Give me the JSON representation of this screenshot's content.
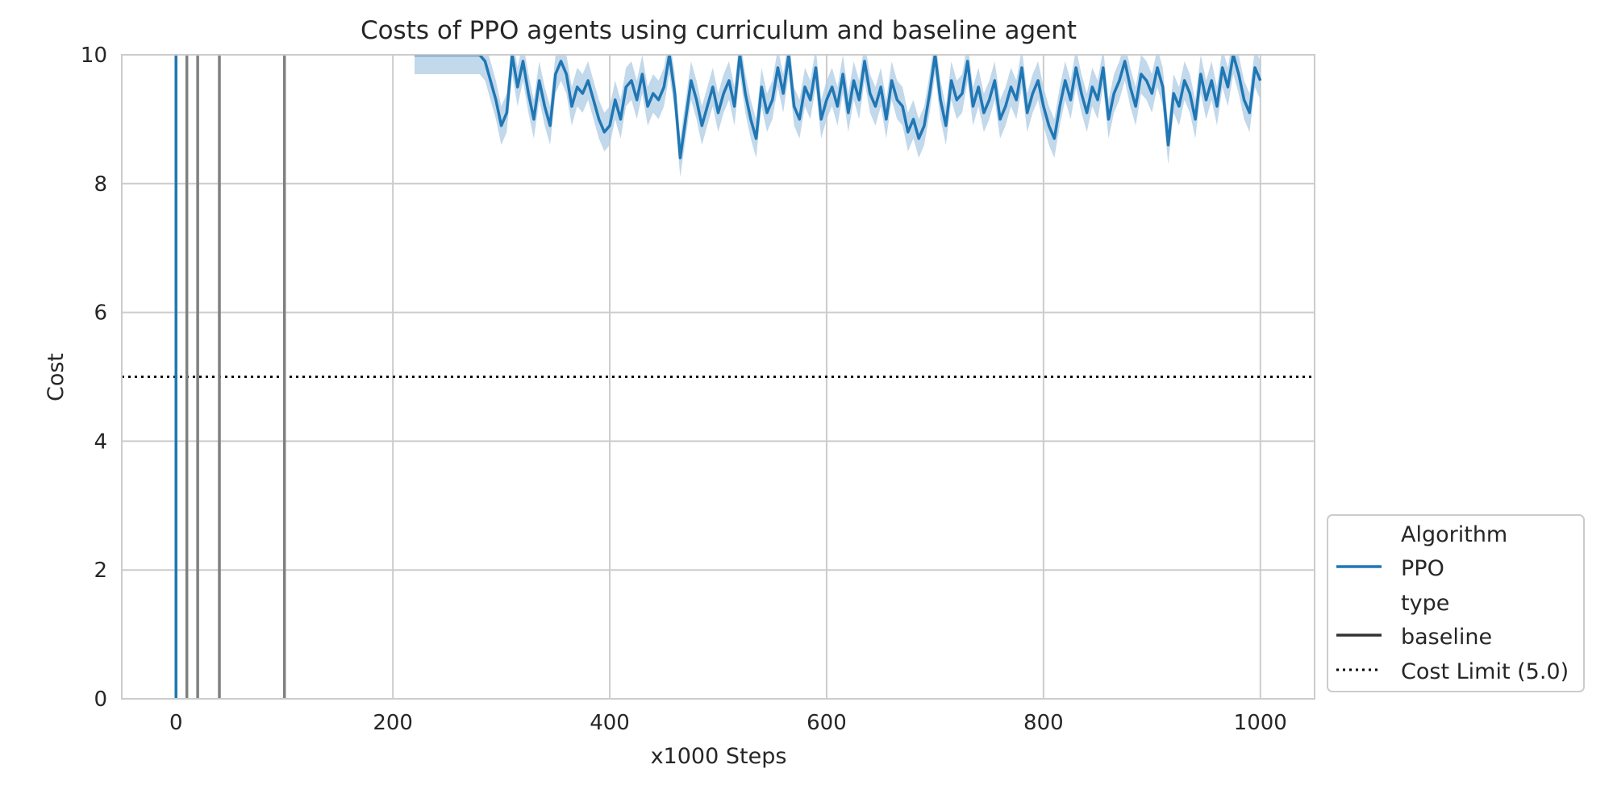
{
  "chart_data": {
    "type": "line",
    "title": "Costs of PPO agents using curriculum and baseline agent",
    "xlabel": "x1000 Steps",
    "ylabel": "Cost",
    "xlim": [
      -50,
      1050
    ],
    "ylim": [
      0,
      10
    ],
    "xticks": [
      0,
      200,
      400,
      600,
      800,
      1000
    ],
    "yticks": [
      0,
      2,
      4,
      6,
      8,
      10
    ],
    "xtick_labels": [
      "0",
      "200",
      "400",
      "600",
      "800",
      "1000"
    ],
    "ytick_labels": [
      "0",
      "2",
      "4",
      "6",
      "8",
      "10"
    ],
    "grid": true,
    "legend_position": "lower-right outside",
    "colors": {
      "ppo": "#1f77b4",
      "ppo_band": "#aecbe4",
      "curriculum_lines": "#808080",
      "cost_limit": "#000000",
      "grid": "#cccccc",
      "spine": "#cccccc"
    },
    "legend": {
      "algorithm_title": "Algorithm",
      "algorithm_entry": "PPO",
      "type_title": "type",
      "type_entry": "baseline",
      "cost_limit_entry": "Cost Limit (5.0)"
    },
    "cost_limit": 5.0,
    "vertical_lines": [
      {
        "x": 0,
        "color": "#1f77b4"
      },
      {
        "x": 10,
        "color": "#808080"
      },
      {
        "x": 20,
        "color": "#808080"
      },
      {
        "x": 40,
        "color": "#808080"
      },
      {
        "x": 100,
        "color": "#808080"
      }
    ],
    "series": [
      {
        "name": "PPO",
        "x": [
          220,
          225,
          230,
          235,
          240,
          250,
          260,
          270,
          280,
          285,
          290,
          295,
          300,
          305,
          310,
          315,
          320,
          325,
          330,
          335,
          340,
          345,
          350,
          355,
          360,
          365,
          370,
          375,
          380,
          385,
          390,
          395,
          400,
          405,
          410,
          415,
          420,
          425,
          430,
          435,
          440,
          445,
          450,
          455,
          460,
          465,
          470,
          475,
          480,
          485,
          490,
          495,
          500,
          505,
          510,
          515,
          520,
          525,
          530,
          535,
          540,
          545,
          550,
          555,
          560,
          565,
          570,
          575,
          580,
          585,
          590,
          595,
          600,
          605,
          610,
          615,
          620,
          625,
          630,
          635,
          640,
          645,
          650,
          655,
          660,
          665,
          670,
          675,
          680,
          685,
          690,
          695,
          700,
          705,
          710,
          715,
          720,
          725,
          730,
          735,
          740,
          745,
          750,
          755,
          760,
          765,
          770,
          775,
          780,
          785,
          790,
          795,
          800,
          805,
          810,
          815,
          820,
          825,
          830,
          835,
          840,
          845,
          850,
          855,
          860,
          865,
          870,
          875,
          880,
          885,
          890,
          895,
          900,
          905,
          910,
          915,
          920,
          925,
          930,
          935,
          940,
          945,
          950,
          955,
          960,
          965,
          970,
          975,
          980,
          985,
          990,
          995,
          1000
        ],
        "y": [
          10.0,
          10.0,
          10.0,
          10.0,
          10.0,
          10.0,
          10.0,
          10.0,
          10.0,
          9.9,
          9.6,
          9.3,
          8.9,
          9.1,
          10.0,
          9.5,
          9.9,
          9.4,
          9.0,
          9.6,
          9.2,
          8.9,
          9.7,
          9.9,
          9.7,
          9.2,
          9.5,
          9.4,
          9.6,
          9.3,
          9.0,
          8.8,
          8.9,
          9.3,
          9.0,
          9.5,
          9.6,
          9.3,
          9.7,
          9.2,
          9.4,
          9.3,
          9.5,
          10.0,
          9.4,
          8.4,
          9.0,
          9.6,
          9.3,
          8.9,
          9.2,
          9.5,
          9.1,
          9.4,
          9.6,
          9.2,
          10.0,
          9.4,
          9.0,
          8.7,
          9.5,
          9.1,
          9.3,
          9.8,
          9.4,
          10.0,
          9.2,
          9.0,
          9.5,
          9.3,
          9.8,
          9.0,
          9.3,
          9.5,
          9.2,
          9.7,
          9.1,
          9.6,
          9.3,
          9.9,
          9.4,
          9.2,
          9.5,
          9.0,
          9.6,
          9.3,
          9.2,
          8.8,
          9.0,
          8.7,
          8.9,
          9.4,
          10.0,
          9.3,
          8.9,
          9.6,
          9.3,
          9.4,
          9.9,
          9.2,
          9.5,
          9.1,
          9.3,
          9.6,
          9.0,
          9.2,
          9.5,
          9.3,
          9.8,
          9.1,
          9.4,
          9.6,
          9.2,
          8.9,
          8.7,
          9.2,
          9.6,
          9.3,
          9.8,
          9.4,
          9.1,
          9.5,
          9.3,
          9.8,
          9.0,
          9.4,
          9.6,
          9.9,
          9.5,
          9.2,
          9.7,
          9.6,
          9.4,
          9.8,
          9.5,
          8.6,
          9.4,
          9.2,
          9.6,
          9.4,
          9.0,
          9.7,
          9.3,
          9.6,
          9.2,
          9.8,
          9.5,
          10.0,
          9.7,
          9.3,
          9.1,
          9.8,
          9.6
        ],
        "band_halfwidth": 0.3
      }
    ]
  }
}
